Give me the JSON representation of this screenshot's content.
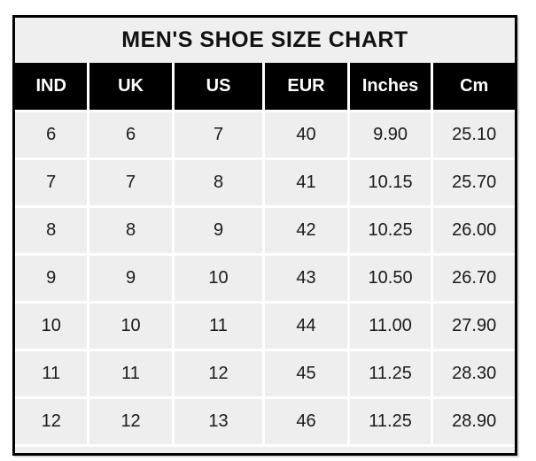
{
  "title": "MEN'S SHOE SIZE CHART",
  "table": {
    "columns": [
      "IND",
      "UK",
      "US",
      "EUR",
      "Inches",
      "Cm"
    ],
    "rows": [
      [
        "6",
        "6",
        "7",
        "40",
        "9.90",
        "25.10"
      ],
      [
        "7",
        "7",
        "8",
        "41",
        "10.15",
        "25.70"
      ],
      [
        "8",
        "8",
        "9",
        "42",
        "10.25",
        "26.00"
      ],
      [
        "9",
        "9",
        "10",
        "43",
        "10.50",
        "26.70"
      ],
      [
        "10",
        "10",
        "11",
        "44",
        "11.00",
        "27.90"
      ],
      [
        "11",
        "11",
        "12",
        "45",
        "11.25",
        "28.30"
      ],
      [
        "12",
        "12",
        "13",
        "46",
        "11.25",
        "28.90"
      ]
    ]
  },
  "colors": {
    "frame_border": "#000000",
    "header_bg": "#000000",
    "header_text": "#ffffff",
    "cell_bg": "#eeeeee",
    "title_bg": "#efefef",
    "grid_line": "#ffffff",
    "cell_text": "#1a1a1a",
    "page_bg": "#ffffff"
  },
  "chart_data": {
    "type": "table",
    "title": "MEN'S SHOE SIZE CHART",
    "columns": [
      "IND",
      "UK",
      "US",
      "EUR",
      "Inches",
      "Cm"
    ],
    "rows": [
      [
        6,
        6,
        7,
        40,
        9.9,
        25.1
      ],
      [
        7,
        7,
        8,
        41,
        10.15,
        25.7
      ],
      [
        8,
        8,
        9,
        42,
        10.25,
        26.0
      ],
      [
        9,
        9,
        10,
        43,
        10.5,
        26.7
      ],
      [
        10,
        10,
        11,
        44,
        11.0,
        27.9
      ],
      [
        11,
        11,
        12,
        45,
        11.25,
        28.3
      ],
      [
        12,
        12,
        13,
        46,
        11.25,
        28.9
      ]
    ]
  }
}
